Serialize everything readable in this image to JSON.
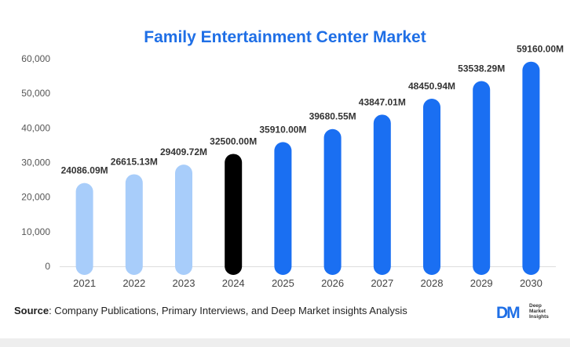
{
  "chart_data": {
    "type": "bar",
    "title": "Family Entertainment Center Market",
    "xlabel": "",
    "ylabel": "",
    "categories": [
      "2021",
      "2022",
      "2023",
      "2024",
      "2025",
      "2026",
      "2027",
      "2028",
      "2029",
      "2030"
    ],
    "values": [
      24086.09,
      26615.13,
      29409.72,
      32500.0,
      35910.0,
      39680.55,
      43847.01,
      48450.94,
      53538.29,
      59160.0
    ],
    "data_labels": [
      "24086.09M",
      "26615.13M",
      "29409.72M",
      "32500.00M",
      "35910.00M",
      "39680.55M",
      "43847.01M",
      "48450.94M",
      "53538.29M",
      "59160.00M"
    ],
    "yticks": [
      0,
      10000,
      20000,
      30000,
      40000,
      50000,
      60000
    ],
    "ytick_labels": [
      "0",
      "10,000",
      "20,000",
      "30,000",
      "40,000",
      "50,000",
      "60,000"
    ],
    "ylim": [
      0,
      60000
    ],
    "bar_colors": [
      "#a8cdfa",
      "#a8cdfa",
      "#a8cdfa",
      "#000000",
      "#1a6ff2",
      "#1a6ff2",
      "#1a6ff2",
      "#1a6ff2",
      "#1a6ff2",
      "#1a6ff2"
    ],
    "grid": false,
    "legend": "none"
  },
  "footer": {
    "source_label": "Source",
    "source_text": ": Company Publications, Primary Interviews, and Deep Market insights Analysis",
    "logo_mark": "DM",
    "logo_line1": "Deep",
    "logo_line2": "Market",
    "logo_line3": "Insights"
  }
}
